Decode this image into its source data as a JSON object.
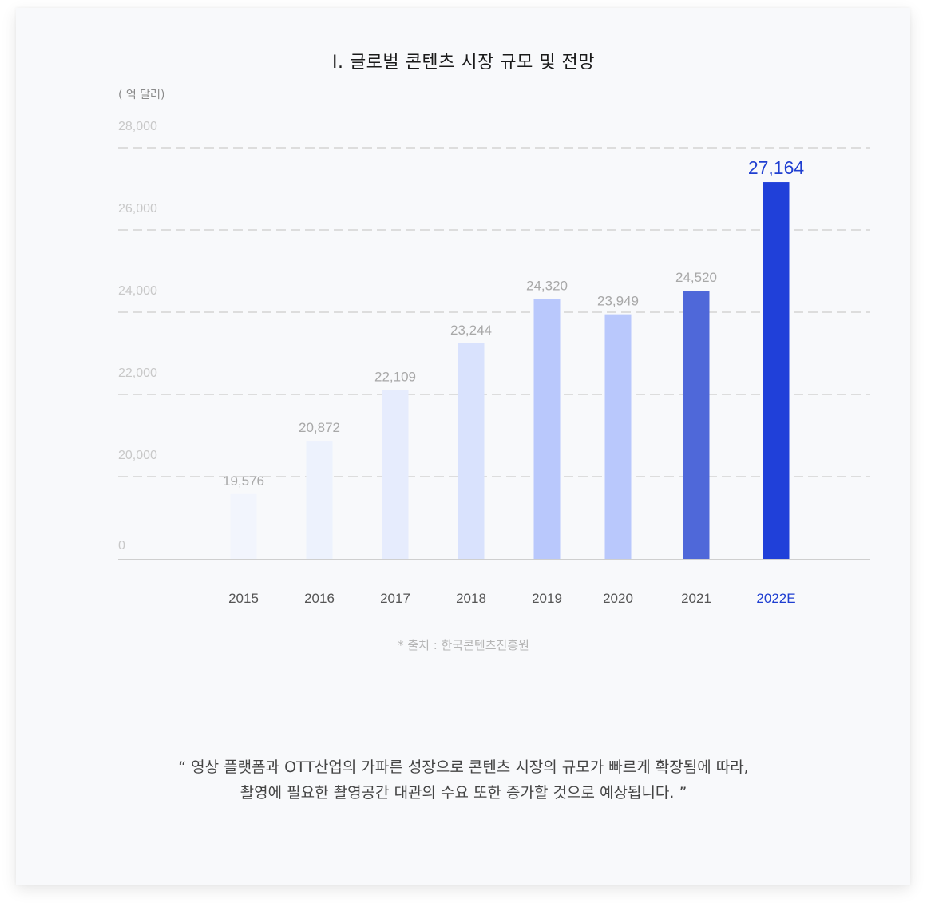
{
  "title": "I. 글로벌  콘텐츠 시장 규모 및 전망",
  "unit_label": "( 억 달러)",
  "source": "* 출처 : 한국콘텐츠진흥원",
  "quote": {
    "line1": "“  영상 플랫폼과 OTT산업의 가파른 성장으로 콘텐츠 시장의 규모가 빠르게 확장됨에 따라,",
    "line2": "촬영에 필요한 촬영공간 대관의 수요 또한 증가할 것으로 예상됩니다.  ”"
  },
  "chart_data": {
    "type": "bar",
    "title": "I. 글로벌  콘텐츠 시장 규모 및 전망",
    "ylabel": "( 억 달러)",
    "xlabel": "",
    "y_tick_labels": [
      "0",
      "20,000",
      "22,000",
      "24,000",
      "26,000",
      "28,000"
    ],
    "y_gridlines": [
      20000,
      22000,
      24000,
      26000,
      28000
    ],
    "categories": [
      "2015",
      "2016",
      "2017",
      "2018",
      "2019",
      "2020",
      "2021",
      "2022E"
    ],
    "values": [
      19576,
      20872,
      22109,
      23244,
      24320,
      23949,
      24520,
      27164
    ],
    "value_labels": [
      "19,576",
      "20,872",
      "22,109",
      "23,244",
      "24,320",
      "23,949",
      "24,520",
      "27,164"
    ],
    "bar_colors": [
      "#f2f5fd",
      "#edf2fd",
      "#e6ecfd",
      "#d9e2fd",
      "#b9c8fc",
      "#b9c8fc",
      "#4f68d9",
      "#2040d9"
    ],
    "highlight_index": 7,
    "highlight_color": "#1f3fd1",
    "grid": true,
    "grid_style": "dashed",
    "legend": "none"
  }
}
